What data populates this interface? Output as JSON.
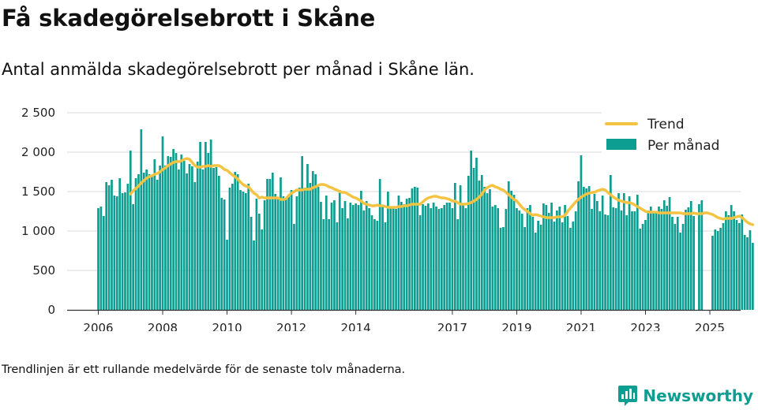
{
  "title": "Få skadegörelsebrott i Skåne",
  "subtitle": "Antal anmälda skadegörelsebrott per månad i Skåne län.",
  "footnote": "Trendlinjen är ett rullande medelvärde för de senaste tolv månaderna.",
  "brand": {
    "name": "Newsworthy",
    "icon": "newsworthy-logo-icon",
    "color": "#0e9d91"
  },
  "colors": {
    "bars": "#0e9d91",
    "trend": "#f5c342",
    "grid": "#d9d9d9"
  },
  "chart_data": {
    "type": "bar",
    "title": "Få skadegörelsebrott i Skåne",
    "subtitle": "Antal anmälda skadegörelsebrott per månad i Skåne län.",
    "start": "2006-01",
    "ylim": [
      0,
      2500
    ],
    "yticks": [
      {
        "v": 0,
        "label": "0"
      },
      {
        "v": 500,
        "label": "500"
      },
      {
        "v": 1000,
        "label": "1 000"
      },
      {
        "v": 1500,
        "label": "1 500"
      },
      {
        "v": 2000,
        "label": "2 000"
      },
      {
        "v": 2500,
        "label": "2 500"
      }
    ],
    "xticks": [
      "2006",
      "2008",
      "2010",
      "2012",
      "2014",
      "2017",
      "2019",
      "2021",
      "2023",
      "2025"
    ],
    "grid": true,
    "legend_position": "top-right",
    "legend": {
      "trend": "Trend",
      "bars": "Per månad"
    },
    "series": [
      {
        "name": "Per månad",
        "values": [
          1290,
          1310,
          1190,
          1620,
          1580,
          1650,
          1450,
          1440,
          1670,
          1480,
          1490,
          1600,
          2020,
          1340,
          1670,
          1720,
          2290,
          1740,
          1780,
          1720,
          1700,
          1910,
          1650,
          1830,
          2200,
          1830,
          1950,
          1940,
          2040,
          1990,
          1780,
          1970,
          1890,
          1730,
          1850,
          1820,
          1620,
          1880,
          2130,
          1780,
          2130,
          1990,
          2160,
          1800,
          1810,
          1700,
          1420,
          1400,
          890,
          1550,
          1600,
          1750,
          1720,
          1520,
          1500,
          1480,
          1600,
          1180,
          880,
          1410,
          1220,
          1020,
          1390,
          1660,
          1660,
          1740,
          1470,
          1410,
          1680,
          1440,
          1400,
          1440,
          1520,
          1090,
          1440,
          1550,
          1950,
          1550,
          1850,
          1610,
          1760,
          1720,
          1560,
          1370,
          1150,
          1450,
          1150,
          1360,
          1390,
          1110,
          1520,
          1290,
          1380,
          1160,
          1360,
          1330,
          1350,
          1330,
          1510,
          1260,
          1380,
          1290,
          1200,
          1150,
          1130,
          1660,
          1310,
          1110,
          1500,
          1310,
          1300,
          1280,
          1450,
          1370,
          1340,
          1410,
          1420,
          1540,
          1560,
          1550,
          1200,
          1340,
          1320,
          1350,
          1290,
          1360,
          1310,
          1280,
          1290,
          1330,
          1360,
          1360,
          1290,
          1610,
          1150,
          1580,
          1340,
          1290,
          1700,
          2020,
          1800,
          1930,
          1640,
          1710,
          1560,
          1480,
          1530,
          1310,
          1330,
          1290,
          1040,
          1050,
          1280,
          1630,
          1510,
          1460,
          1290,
          1260,
          1220,
          1050,
          1290,
          1330,
          1180,
          980,
          1130,
          1080,
          1350,
          1330,
          1230,
          1360,
          1120,
          1260,
          1310,
          1110,
          1330,
          1190,
          1040,
          1120,
          1250,
          1630,
          1960,
          1560,
          1540,
          1570,
          1280,
          1470,
          1380,
          1250,
          1450,
          1210,
          1200,
          1710,
          1300,
          1290,
          1480,
          1260,
          1480,
          1200,
          1440,
          1250,
          1250,
          1460,
          1030,
          1090,
          1140,
          1260,
          1310,
          1250,
          1250,
          1310,
          1280,
          1390,
          1320,
          1430,
          1180,
          1090,
          1180,
          980,
          1090,
          1270,
          1300,
          1380,
          1190,
          0,
          1340,
          1390,
          0,
          0,
          0,
          940,
          1020,
          1000,
          1040,
          1100,
          1250,
          1200,
          1330,
          1250,
          1140,
          1100,
          1210,
          950,
          920,
          1010,
          850
        ]
      },
      {
        "name": "Trend",
        "values": [
          null,
          null,
          null,
          null,
          null,
          null,
          null,
          null,
          null,
          null,
          null,
          null,
          1470,
          1510,
          1540,
          1570,
          1610,
          1640,
          1670,
          1690,
          1700,
          1720,
          1730,
          1750,
          1780,
          1800,
          1830,
          1850,
          1870,
          1880,
          1880,
          1890,
          1910,
          1920,
          1910,
          1870,
          1830,
          1810,
          1810,
          1820,
          1820,
          1830,
          1820,
          1830,
          1830,
          1830,
          1810,
          1780,
          1770,
          1740,
          1710,
          1690,
          1660,
          1620,
          1590,
          1570,
          1560,
          1520,
          1480,
          1460,
          1420,
          1430,
          1420,
          1420,
          1420,
          1420,
          1420,
          1420,
          1400,
          1400,
          1410,
          1450,
          1480,
          1500,
          1520,
          1520,
          1520,
          1530,
          1530,
          1530,
          1550,
          1560,
          1580,
          1590,
          1590,
          1580,
          1560,
          1550,
          1530,
          1520,
          1500,
          1490,
          1490,
          1470,
          1450,
          1430,
          1420,
          1400,
          1380,
          1350,
          1340,
          1330,
          1320,
          1320,
          1330,
          1320,
          1320,
          1310,
          1300,
          1300,
          1300,
          1300,
          1310,
          1310,
          1320,
          1320,
          1330,
          1340,
          1340,
          1340,
          1340,
          1370,
          1400,
          1420,
          1430,
          1440,
          1440,
          1430,
          1420,
          1420,
          1410,
          1400,
          1380,
          1380,
          1360,
          1340,
          1340,
          1340,
          1350,
          1360,
          1380,
          1400,
          1430,
          1470,
          1520,
          1550,
          1570,
          1580,
          1560,
          1550,
          1530,
          1520,
          1490,
          1460,
          1430,
          1400,
          1380,
          1340,
          1300,
          1270,
          1250,
          1220,
          1200,
          1210,
          1200,
          1190,
          1180,
          1170,
          1170,
          1170,
          1170,
          1180,
          1180,
          1180,
          1200,
          1250,
          1290,
          1330,
          1370,
          1400,
          1430,
          1450,
          1470,
          1480,
          1490,
          1490,
          1510,
          1520,
          1530,
          1520,
          1490,
          1460,
          1430,
          1410,
          1390,
          1380,
          1370,
          1360,
          1360,
          1350,
          1330,
          1310,
          1290,
          1270,
          1250,
          1240,
          1240,
          1240,
          1240,
          1230,
          1230,
          1230,
          1230,
          1230,
          1230,
          1230,
          1230,
          1230,
          1220,
          1220,
          1220,
          1220,
          1230,
          1220,
          1220,
          1220,
          1230,
          1230,
          1220,
          1210,
          1190,
          1170,
          1160,
          1150,
          1160,
          1160,
          1160,
          1170,
          1180,
          1190,
          1170,
          1140,
          1110,
          1090,
          1080
        ]
      }
    ]
  }
}
